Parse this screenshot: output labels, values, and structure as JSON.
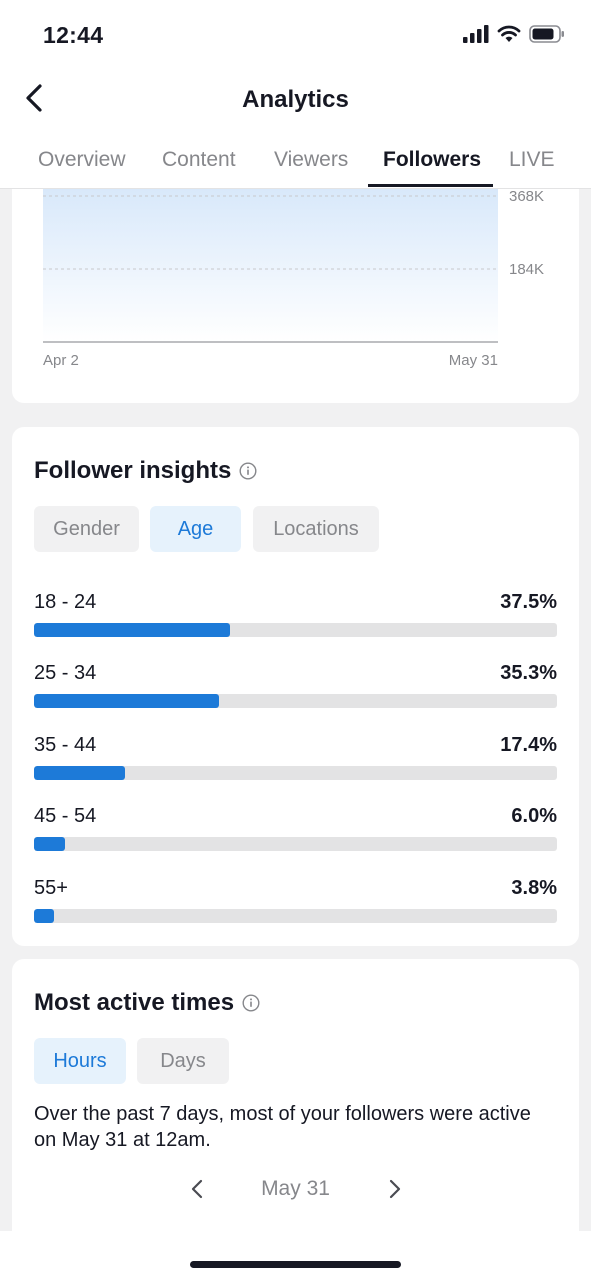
{
  "status": {
    "time": "12:44"
  },
  "header": {
    "title": "Analytics"
  },
  "tabs": [
    {
      "label": "Overview",
      "active": false
    },
    {
      "label": "Content",
      "active": false
    },
    {
      "label": "Viewers",
      "active": false
    },
    {
      "label": "Followers",
      "active": true
    },
    {
      "label": "LIVE",
      "active": false
    }
  ],
  "chart_data": {
    "type": "area",
    "x_start_label": "Apr 2",
    "x_end_label": "May 31",
    "y_tick_labels": [
      "368K",
      "184K"
    ],
    "y_ticks": [
      368000,
      184000
    ],
    "fill_color": "#dbe9fb"
  },
  "insights": {
    "title": "Follower insights",
    "tabs": [
      {
        "label": "Gender",
        "active": false
      },
      {
        "label": "Age",
        "active": true
      },
      {
        "label": "Locations",
        "active": false
      }
    ],
    "age_groups": [
      {
        "label": "18 - 24",
        "value": "37.5%",
        "pct": 37.5
      },
      {
        "label": "25 - 34",
        "value": "35.3%",
        "pct": 35.3
      },
      {
        "label": "35 - 44",
        "value": "17.4%",
        "pct": 17.4
      },
      {
        "label": "45 - 54",
        "value": "6.0%",
        "pct": 6.0
      },
      {
        "label": "55+",
        "value": "3.8%",
        "pct": 3.8
      }
    ],
    "bar_color": "#1d7ad8"
  },
  "active_times": {
    "title": "Most active times",
    "tabs": [
      {
        "label": "Hours",
        "active": true
      },
      {
        "label": "Days",
        "active": false
      }
    ],
    "description": "Over the past 7 days, most of your followers were active on May 31 at 12am.",
    "date": "May 31"
  },
  "icons": {
    "back": "chevron-left-icon",
    "info": "info-icon",
    "prev": "chevron-left-icon",
    "next": "chevron-right-icon",
    "signal": "cellular-signal-icon",
    "wifi": "wifi-icon",
    "battery": "battery-icon"
  }
}
